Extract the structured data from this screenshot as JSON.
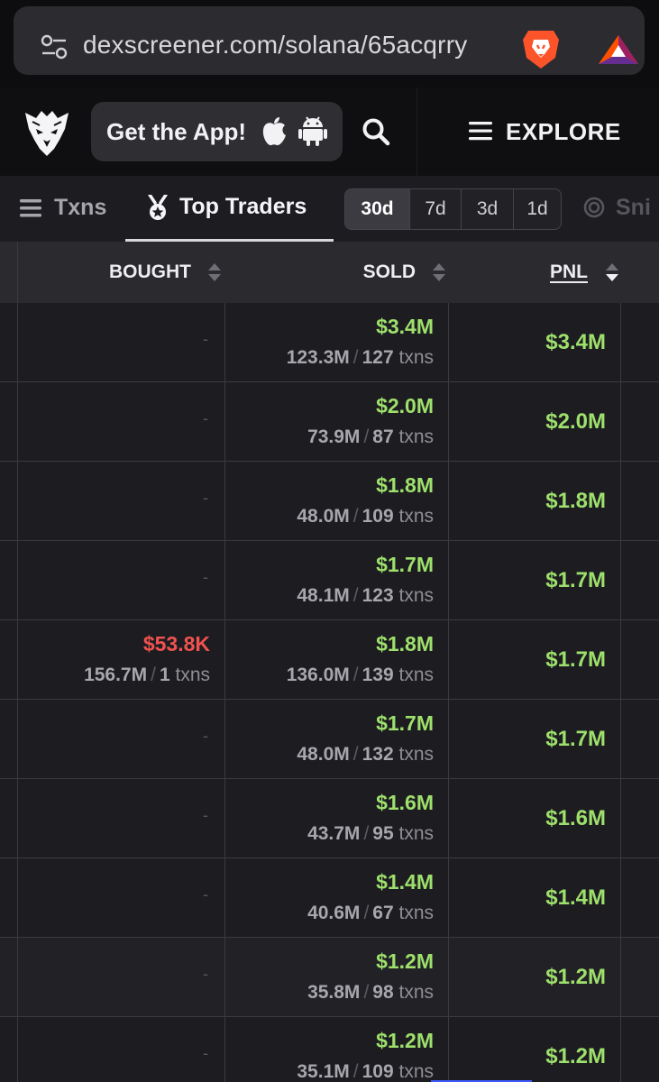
{
  "browser": {
    "url": "dexscreener.com/solana/65acqrry"
  },
  "header": {
    "get_app_label": "Get the App!",
    "explore_label": "EXPLORE"
  },
  "tabs": {
    "txns_label": "Txns",
    "top_traders_label": "Top Traders",
    "snipers_label": "Sni",
    "time_ranges": [
      "30d",
      "7d",
      "3d",
      "1d"
    ],
    "active_range": "30d"
  },
  "table": {
    "headers": {
      "bought": "BOUGHT",
      "sold": "SOLD",
      "pnl": "PNL"
    },
    "rows": [
      {
        "bought": "-",
        "bought_sub": null,
        "sold": "$3.4M",
        "sold_vol": "123.3M",
        "sold_txns": "127",
        "pnl": "$3.4M"
      },
      {
        "bought": "-",
        "bought_sub": null,
        "sold": "$2.0M",
        "sold_vol": "73.9M",
        "sold_txns": "87",
        "pnl": "$2.0M"
      },
      {
        "bought": "-",
        "bought_sub": null,
        "sold": "$1.8M",
        "sold_vol": "48.0M",
        "sold_txns": "109",
        "pnl": "$1.8M"
      },
      {
        "bought": "-",
        "bought_sub": null,
        "sold": "$1.7M",
        "sold_vol": "48.1M",
        "sold_txns": "123",
        "pnl": "$1.7M"
      },
      {
        "bought": "$53.8K",
        "bought_vol": "156.7M",
        "bought_txns": "1",
        "sold": "$1.8M",
        "sold_vol": "136.0M",
        "sold_txns": "139",
        "pnl": "$1.7M"
      },
      {
        "bought": "-",
        "bought_sub": null,
        "sold": "$1.7M",
        "sold_vol": "48.0M",
        "sold_txns": "132",
        "pnl": "$1.7M"
      },
      {
        "bought": "-",
        "bought_sub": null,
        "sold": "$1.6M",
        "sold_vol": "43.7M",
        "sold_txns": "95",
        "pnl": "$1.6M"
      },
      {
        "bought": "-",
        "bought_sub": null,
        "sold": "$1.4M",
        "sold_vol": "40.6M",
        "sold_txns": "67",
        "pnl": "$1.4M"
      },
      {
        "bought": "-",
        "bought_sub": null,
        "sold": "$1.2M",
        "sold_vol": "35.8M",
        "sold_txns": "98",
        "pnl": "$1.2M"
      },
      {
        "bought": "-",
        "bought_sub": null,
        "sold": "$1.2M",
        "sold_vol": "35.1M",
        "sold_txns": "109",
        "pnl": "$1.2M"
      }
    ],
    "txns_suffix": "txns"
  },
  "colors": {
    "positive": "#9ee06c",
    "negative": "#f0524f",
    "background": "#1d1d21",
    "header_bg": "#2a2a2f"
  },
  "icons": {
    "url_bar_left": "tune-icon",
    "browser_right_1": "brave-lion-icon",
    "browser_right_2": "bat-triangle-icon",
    "logo": "eagle-logo-icon",
    "get_app": [
      "apple-icon",
      "android-icon"
    ],
    "search": "search-icon",
    "explore": "hamburger-icon",
    "txns_tab": "list-icon",
    "top_traders_tab": "medal-icon",
    "snipers_tab": "target-icon",
    "sort": "sort-arrows-icon"
  }
}
